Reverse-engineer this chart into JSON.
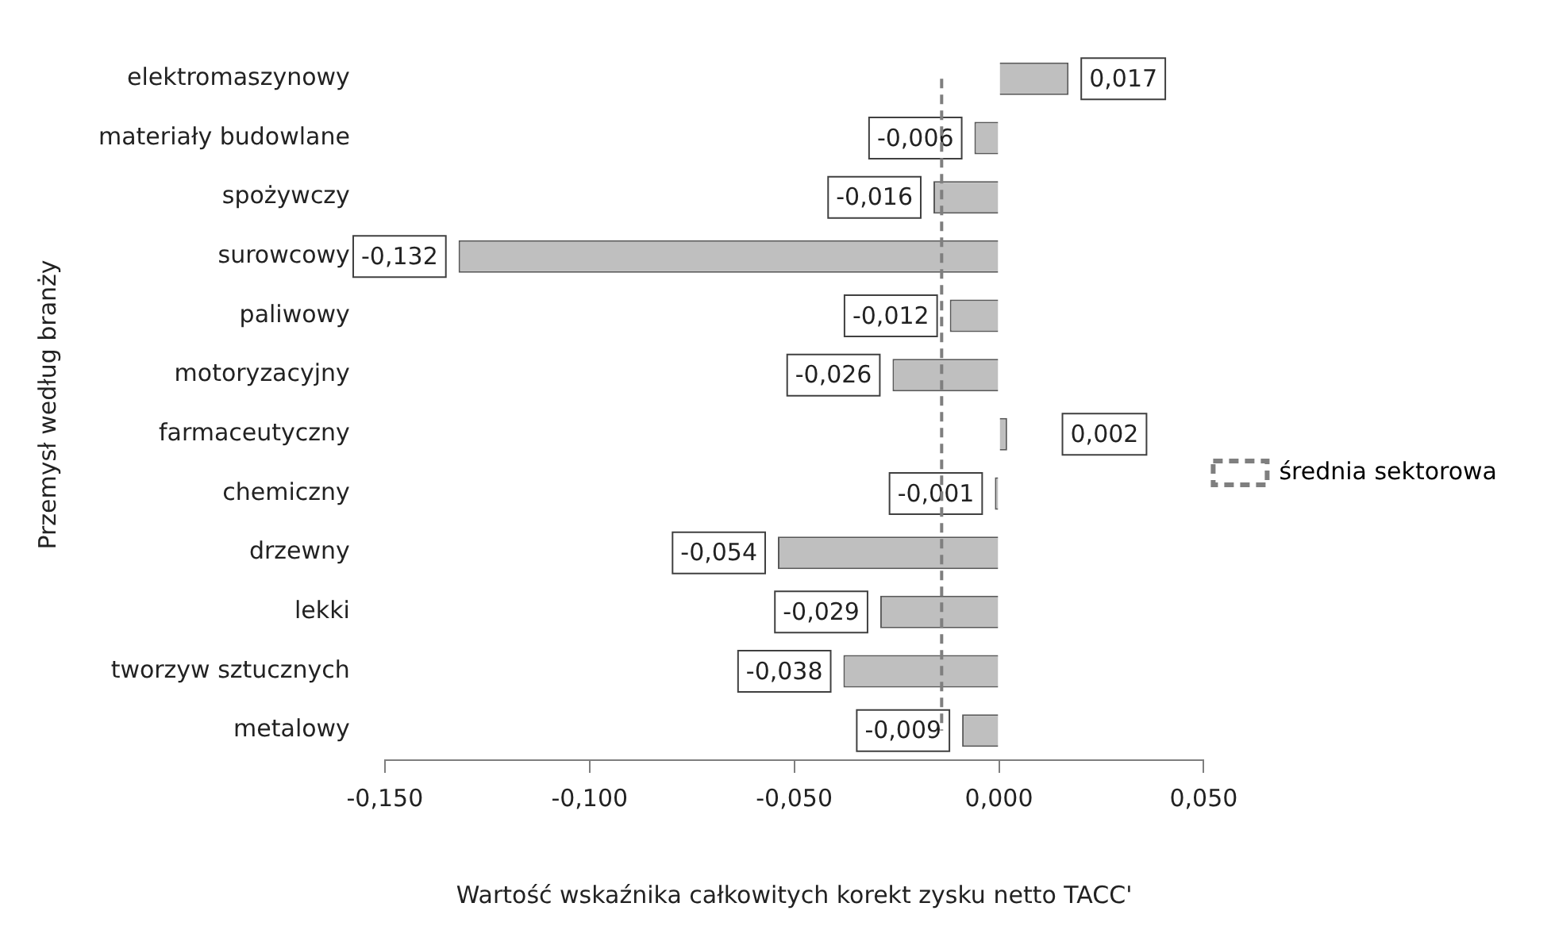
{
  "chart_data": {
    "type": "bar",
    "orientation": "horizontal",
    "xlabel": "Wartość wskaźnika całkowitych korekt zysku netto TACC'",
    "ylabel": "Przemysł według branży",
    "categories": [
      "elektromaszynowy",
      "materiały budowlane",
      "spożywczy",
      "surowcowy",
      "paliwowy",
      "motoryzacyjny",
      "farmaceutyczny",
      "chemiczny",
      "drzewny",
      "lekki",
      "tworzyw sztucznych",
      "metalowy"
    ],
    "series": [
      {
        "color": "#bfbfbf",
        "values": [
          0.017,
          -0.006,
          -0.016,
          -0.132,
          -0.012,
          -0.026,
          0.002,
          -0.001,
          -0.054,
          -0.029,
          -0.038,
          -0.009
        ],
        "value_labels": [
          "0,017",
          "-0,006",
          "-0,016",
          "-0,132",
          "-0,012",
          "-0,026",
          "0,002",
          "-0,001",
          "-0,054",
          "-0,029",
          "-0,038",
          "-0,009"
        ]
      },
      {
        "type": "line",
        "name": "średnia sektorowa",
        "color": "#7f7f7f",
        "line_style": "dashed",
        "values": [
          -0.014,
          -0.014,
          -0.014,
          -0.014,
          -0.014,
          -0.014,
          -0.014,
          -0.014,
          -0.014,
          -0.014,
          -0.014,
          -0.014
        ]
      }
    ],
    "xlim": [
      -0.15,
      0.05
    ],
    "xticks": [
      {
        "value": -0.15,
        "label": "-0,150"
      },
      {
        "value": -0.1,
        "label": "-0,100"
      },
      {
        "value": -0.05,
        "label": "-0,050"
      },
      {
        "value": 0,
        "label": "0,000"
      },
      {
        "value": 0.05,
        "label": "0,050"
      }
    ],
    "marker": "none",
    "legend": "right",
    "grid": false
  }
}
